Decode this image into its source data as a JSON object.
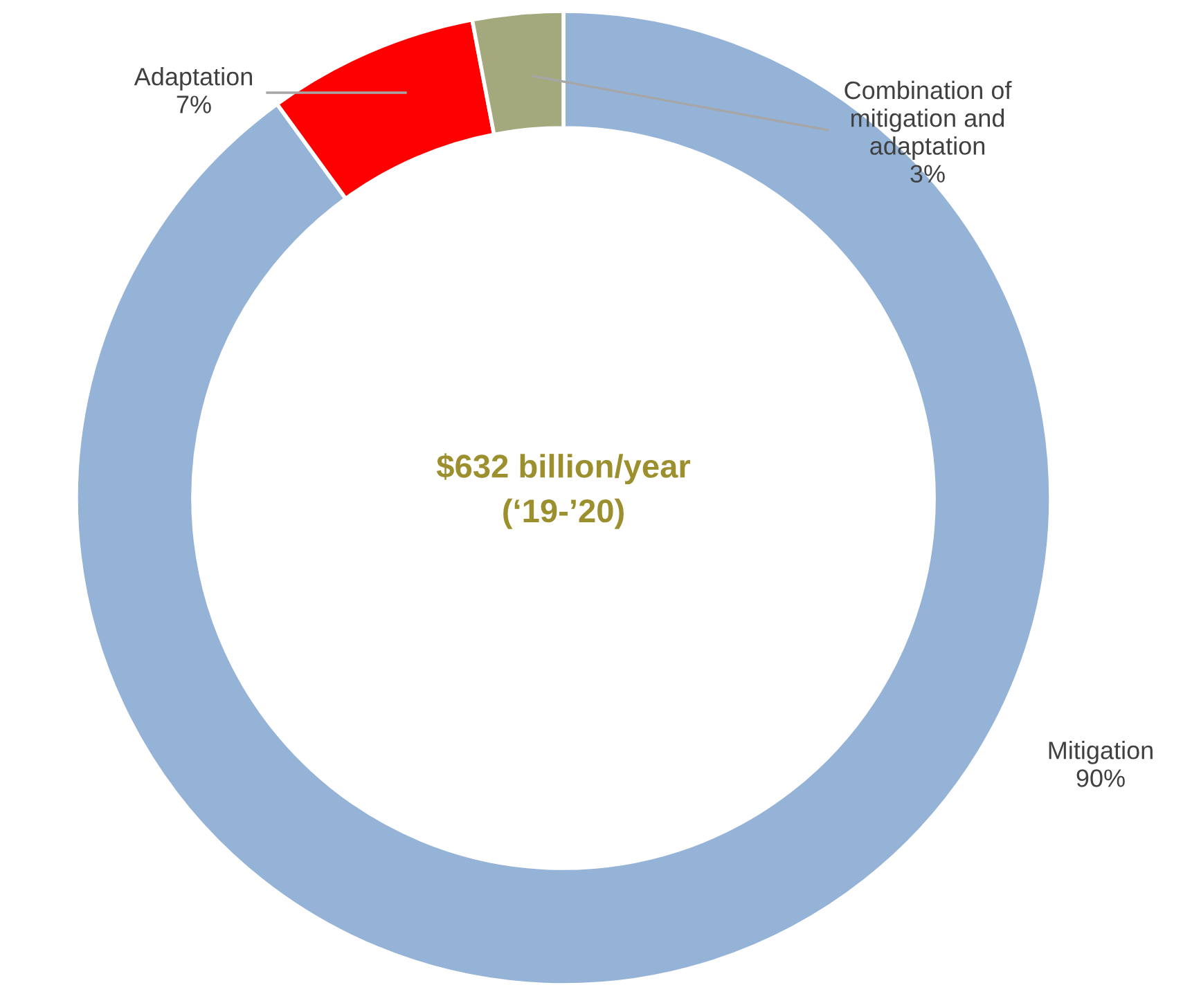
{
  "chart_data": {
    "type": "donut",
    "categories": [
      "Mitigation",
      "Adaptation",
      "Combination of\nmitigation and\nadaptation"
    ],
    "values": [
      90,
      7,
      3
    ],
    "value_labels": [
      "90%",
      "7%",
      "3%"
    ],
    "colors": [
      "#95b3d7",
      "#ff0000",
      "#a3a97d"
    ],
    "annotations": [
      "$632 billion/year\n(‘19-’20)"
    ],
    "legend": false
  }
}
